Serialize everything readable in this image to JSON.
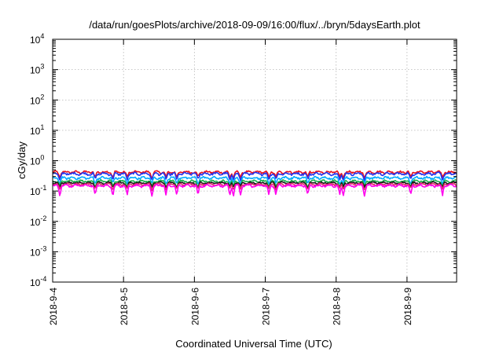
{
  "chart_data": {
    "type": "line",
    "title": "/data/run/goesPlots/archive/2018-09-09/16:00/flux/../bryn/5daysEarth.plot",
    "xlabel": "Coordinated Universal Time (UTC)",
    "ylabel": "cGy/day",
    "yscale": "log",
    "ylim_exponents": [
      -4,
      4
    ],
    "y_tick_base": "10",
    "y_tick_exponents": [
      "-4",
      "-3",
      "-2",
      "-1",
      "0",
      "1",
      "2",
      "3",
      "4"
    ],
    "x_tick_labels": [
      "2018-9-4",
      "2018-9-5",
      "2018-9-6",
      "2018-9-7",
      "2018-9-8",
      "2018-9-9"
    ],
    "x_range_days": [
      0,
      5.7
    ],
    "grid": true,
    "legend": "none",
    "dip_days": [
      0.1,
      0.6,
      0.85,
      1.05,
      1.4,
      1.6,
      1.75,
      2.05,
      2.5,
      2.55,
      2.65,
      3.05,
      3.15,
      3.6,
      4.05,
      4.1,
      4.4,
      5.05,
      5.5
    ],
    "series": [
      {
        "color": "#e8101c",
        "level": 0.42,
        "amplitude": 0.05,
        "dip_depth": 0.35
      },
      {
        "color": "#2233ee",
        "level": 0.37,
        "amplitude": 0.05,
        "dip_depth": 0.38
      },
      {
        "color": "#00aaff",
        "level": 0.27,
        "amplitude": 0.035,
        "dip_depth": 0.36
      },
      {
        "color": "#19b04b",
        "level": 0.21,
        "amplitude": 0.025,
        "dip_depth": 0.34
      },
      {
        "color": "#1a1a1a",
        "level": 0.185,
        "amplitude": 0.02,
        "dip_depth": 0.3
      },
      {
        "color": "#e0306a",
        "level": 0.165,
        "amplitude": 0.02,
        "dip_depth": 0.32
      },
      {
        "color": "#ff00ee",
        "level": 0.15,
        "amplitude": 0.02,
        "dip_depth": 0.55
      }
    ]
  }
}
